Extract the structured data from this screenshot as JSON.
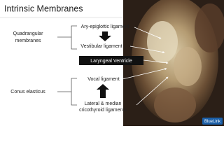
{
  "header": {
    "title": "Intrinsic Membranes"
  },
  "groups": [
    {
      "lines": [
        "Quadrangular",
        "membranes"
      ]
    },
    {
      "lines": [
        "Conus elasticus"
      ]
    }
  ],
  "labels": {
    "aryepiglottic": "Ary-epiglottic ligament",
    "vestibular": "Vestibular ligament",
    "ventricle": "Laryngeal Ventricle",
    "vocal": "Vocal ligament",
    "cricothyroid": [
      "Lateral & median",
      "cricothyroid ligaments"
    ]
  },
  "logo": "BlueLink"
}
